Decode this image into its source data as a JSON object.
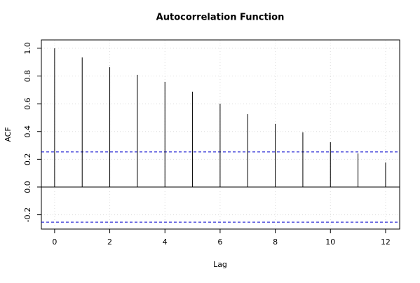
{
  "chart_data": {
    "type": "stem",
    "title": "Autocorrelation Function",
    "x_label": "Lag",
    "y_label": "ACF",
    "x": [
      0,
      1,
      2,
      3,
      4,
      5,
      6,
      7,
      8,
      9,
      10,
      11,
      12
    ],
    "values": [
      1.0,
      0.934,
      0.864,
      0.808,
      0.758,
      0.687,
      0.601,
      0.525,
      0.455,
      0.394,
      0.323,
      0.242,
      0.177
    ],
    "color": "#000000",
    "confidence_limits": [
      0.253,
      -0.253
    ],
    "confidence_color": "#0000cc",
    "xlim": [
      -0.48,
      12.51
    ],
    "ylim": [
      -0.303,
      1.06
    ],
    "xticks": [
      0,
      2,
      4,
      6,
      8,
      10,
      12
    ],
    "yticks": [
      {
        "value": 0,
        "label": "0.0"
      },
      0.2,
      0.4,
      0.6,
      0.8,
      {
        "value": 1,
        "label": "1.0"
      },
      -0.2
    ],
    "grid": true
  }
}
